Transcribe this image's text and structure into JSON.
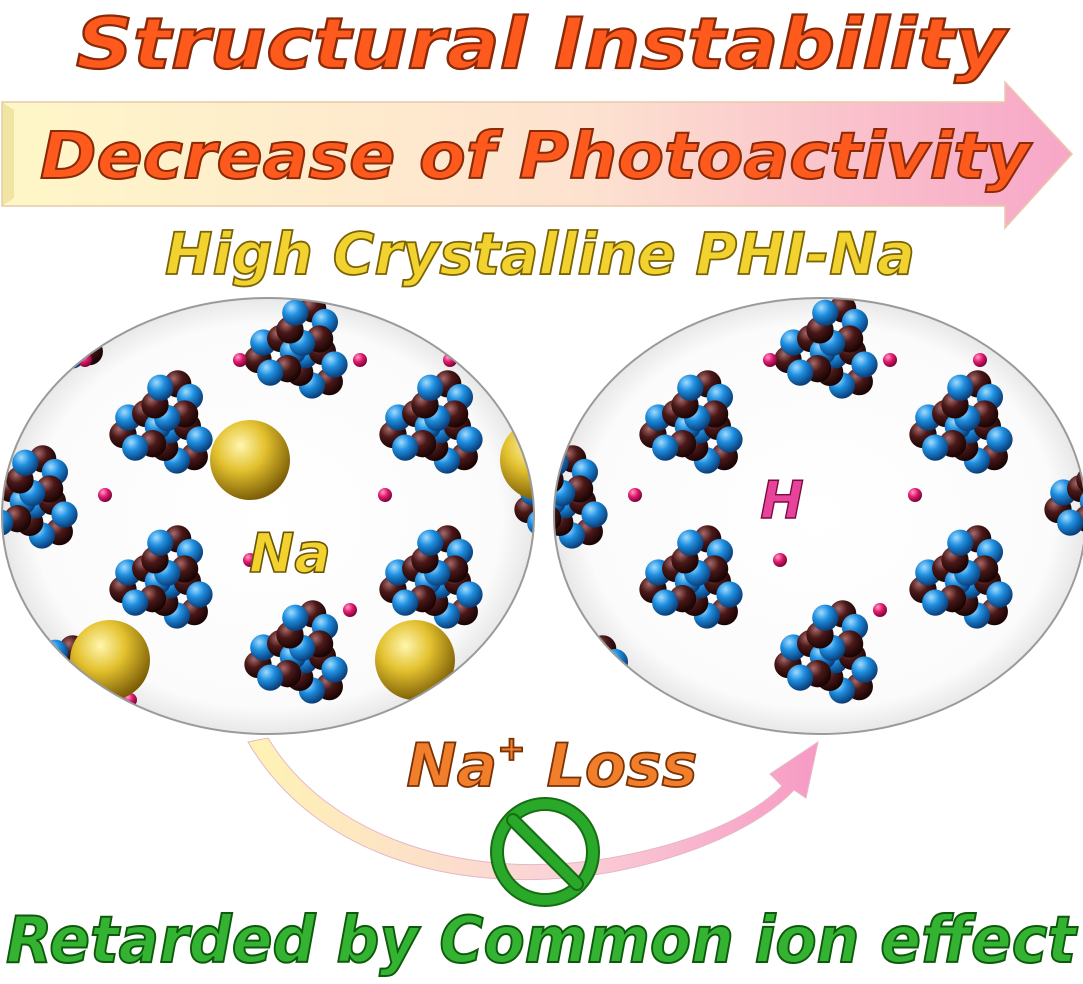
{
  "title": "Structural Instability",
  "arrow_label": "Decrease of Photoactivity",
  "subtitle": "High Crystalline PHI-Na",
  "left_panel": {
    "ion_label": "Na"
  },
  "right_panel": {
    "ion_label": "H"
  },
  "transition": {
    "label_main": "Na",
    "label_superscript": "+",
    "label_suffix": " Loss"
  },
  "footer": "Retarded by Common ion effect",
  "colors": {
    "title": "#ff5a1e",
    "arrow_start": "#fff7c8",
    "arrow_end": "#f7a6c8",
    "subtitle": "#f2d22e",
    "na_label": "#f2d22e",
    "h_label": "#e8439a",
    "transition_label": "#f07e2a",
    "footer": "#34b232",
    "prohibit": "#2aa829",
    "nitrogen": "#1e8ee0",
    "carbon": "#4a1818",
    "hydrogen": "#e0186e",
    "sodium": "#e3c12e"
  },
  "icons": [
    "prohibition-icon",
    "curved-arrow-icon",
    "right-arrow-icon"
  ]
}
